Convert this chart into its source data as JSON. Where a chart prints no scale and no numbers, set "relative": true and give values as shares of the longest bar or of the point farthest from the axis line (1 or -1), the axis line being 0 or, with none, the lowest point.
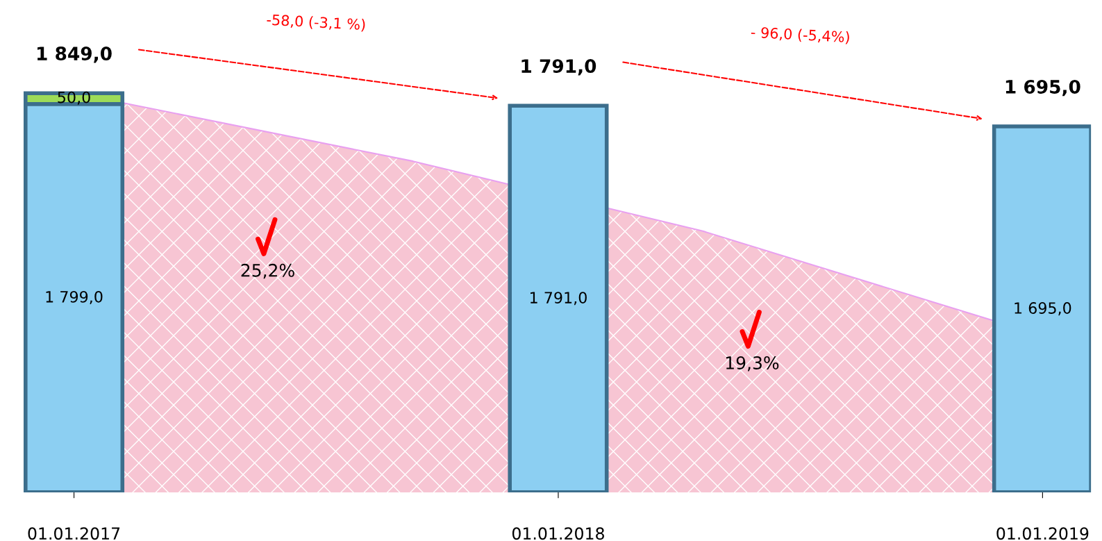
{
  "chart_data": [
    {
      "type": "area",
      "relative": true,
      "categories": [
        null,
        null,
        null,
        null
      ],
      "series": [
        {
          "color": "#f7c5d3",
          "values": [
            1,
            0.85,
            0.67,
            0.44
          ]
        }
      ]
    },
    {
      "type": "bar",
      "stacked": true,
      "categories": [
        "01.01.2017",
        "01.01.2018",
        "01.01.2019"
      ],
      "series": [
        {
          "color": "#8ccff2",
          "values": [
            1799,
            1791,
            1695
          ],
          "value_labels": [
            "1 799,0",
            "1 791,0",
            "1 695,0"
          ]
        },
        {
          "color": "#9ddc58",
          "values": [
            50,
            null,
            null
          ],
          "value_labels": [
            "50,0",
            null,
            null
          ]
        }
      ],
      "totals": [
        "1 849,0",
        "1 791,0",
        "1 695,0"
      ],
      "annotations": [
        "-58,0 (-3,1 %)",
        "- 96,0 (-5,4%)",
        "25,2%",
        "19,3%"
      ]
    }
  ]
}
